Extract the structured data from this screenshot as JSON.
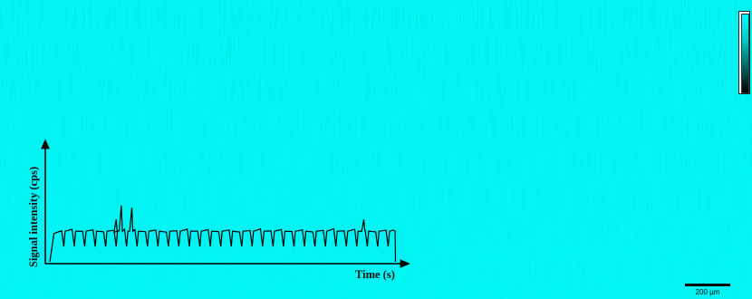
{
  "image": {
    "background_color": "#00ffff",
    "colorbar_gradient": [
      "#00ffff",
      "#00c8c8",
      "#006868",
      "#000000"
    ]
  },
  "inset_plot": {
    "xlabel": "Time (s)",
    "ylabel": "Signal intensity (cps)",
    "line_color": "#000000"
  },
  "chart_data": {
    "type": "line",
    "xlabel": "Time (s)",
    "ylabel": "Signal intensity (cps)",
    "description_values": {
      "baseline": 0.26,
      "rise_start": 0.0,
      "rise_end": 0.02,
      "fall_at": 0.99,
      "x_range": [
        0,
        1
      ],
      "y_range": [
        0,
        1
      ],
      "dips": [
        0.04,
        0.07,
        0.1,
        0.13,
        0.16,
        0.19,
        0.22,
        0.25,
        0.28,
        0.31,
        0.34,
        0.37,
        0.4,
        0.43,
        0.46,
        0.49,
        0.52,
        0.55,
        0.58,
        0.61,
        0.64,
        0.67,
        0.7,
        0.73,
        0.76,
        0.79,
        0.82,
        0.85,
        0.88,
        0.91,
        0.94,
        0.97
      ],
      "spikes": [
        {
          "x": 0.205,
          "y": 0.48
        },
        {
          "x": 0.235,
          "y": 0.46
        },
        {
          "x": 0.19,
          "y": 0.36
        },
        {
          "x": 0.9,
          "y": 0.36
        }
      ]
    }
  },
  "scalebar": {
    "label": "200 µm"
  }
}
